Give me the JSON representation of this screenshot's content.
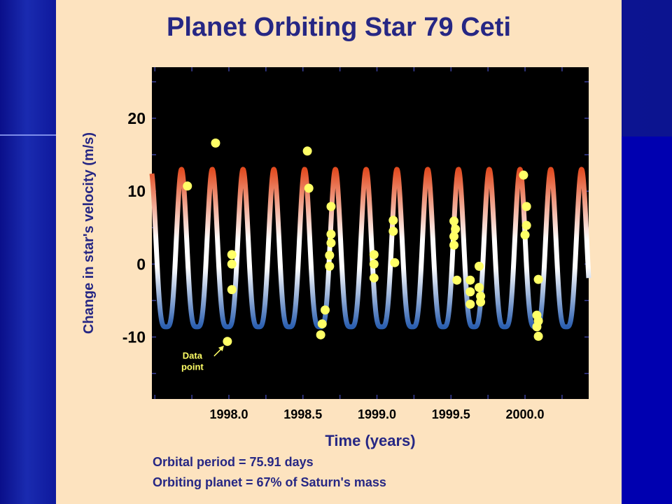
{
  "slide": {
    "background_colors": [
      "#0a0f8a",
      "#1a2bb0",
      "#0c1490"
    ],
    "panel_color": "#fde3bf",
    "text_color": "#262784"
  },
  "chart_data": {
    "type": "scatter",
    "title": "Planet Orbiting Star 79 Ceti",
    "xlabel": "Time (years)",
    "ylabel": "Change in star's velocity (m/s)",
    "xlim": [
      1997.48,
      2000.43
    ],
    "ylim": [
      -18.5,
      27
    ],
    "xticks": [
      "1998.0",
      "1998.5",
      "1999.0",
      "1999.5",
      "2000.0"
    ],
    "yticks": [
      "20",
      "10",
      "0",
      "-10"
    ],
    "grid": false,
    "plot_background": "#000000",
    "point_color": "#ffff66",
    "model_curve": {
      "type": "periodic",
      "period_days": 75.91,
      "max": 13,
      "min": -8.6,
      "colors": [
        "#e24b20",
        "#ffffff",
        "#2b5fb0"
      ]
    },
    "series": [
      {
        "values": [
          [
            1997.72,
            10.7
          ],
          [
            1997.91,
            16.6
          ],
          [
            1998.02,
            1.3
          ],
          [
            1998.02,
            0
          ],
          [
            1998.02,
            -3.5
          ],
          [
            1997.99,
            -10.6
          ],
          [
            1998.53,
            15.5
          ],
          [
            1998.54,
            10.4
          ],
          [
            1998.63,
            -8.2
          ],
          [
            1998.62,
            -9.7
          ],
          [
            1998.65,
            -6.3
          ],
          [
            1998.68,
            -0.3
          ],
          [
            1998.68,
            1.2
          ],
          [
            1998.69,
            2.9
          ],
          [
            1998.69,
            4.1
          ],
          [
            1998.69,
            7.9
          ],
          [
            1998.98,
            1.3
          ],
          [
            1998.98,
            0
          ],
          [
            1998.98,
            -1.9
          ],
          [
            1999.11,
            6.0
          ],
          [
            1999.11,
            4.5
          ],
          [
            1999.12,
            0.2
          ],
          [
            1999.52,
            5.9
          ],
          [
            1999.53,
            4.8
          ],
          [
            1999.52,
            3.8
          ],
          [
            1999.52,
            2.6
          ],
          [
            1999.54,
            -2.2
          ],
          [
            1999.63,
            -2.2
          ],
          [
            1999.63,
            -3.8
          ],
          [
            1999.63,
            -5.5
          ],
          [
            1999.69,
            -0.3
          ],
          [
            1999.69,
            -3.2
          ],
          [
            1999.7,
            -4.4
          ],
          [
            1999.7,
            -5.2
          ],
          [
            1999.99,
            12.2
          ],
          [
            2000.01,
            7.9
          ],
          [
            2000.01,
            5.3
          ],
          [
            2000.0,
            4.0
          ],
          [
            2000.09,
            -2.1
          ],
          [
            2000.08,
            -7.0
          ],
          [
            2000.09,
            -7.8
          ],
          [
            2000.08,
            -8.6
          ],
          [
            2000.09,
            -9.9
          ]
        ]
      }
    ],
    "annotations": [
      {
        "text_lines": [
          "Data",
          "point"
        ],
        "color": "#ffff66",
        "target": [
          1997.99,
          -10.6
        ]
      }
    ],
    "notes": [
      "Orbital period = 75.91 days",
      "Orbiting planet = 67% of Saturn's mass"
    ]
  }
}
